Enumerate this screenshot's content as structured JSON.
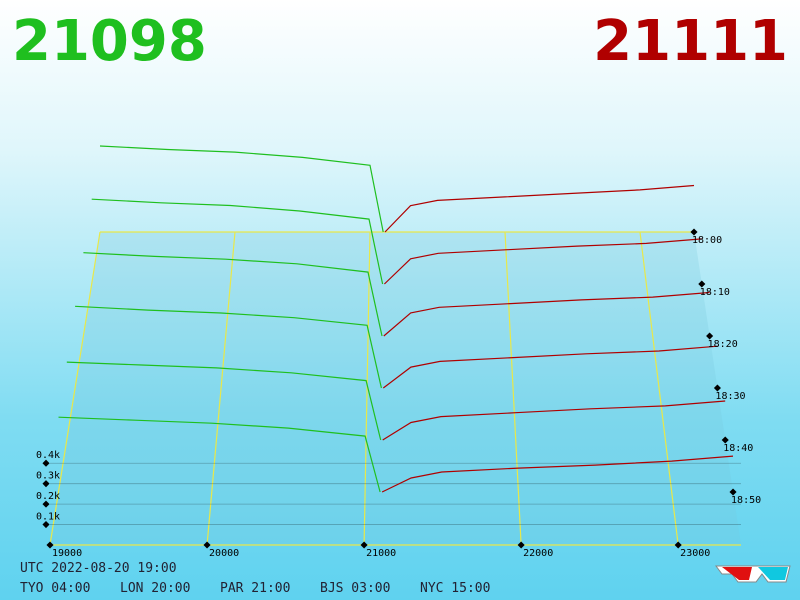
{
  "chart_data": {
    "type": "depth3d",
    "best_bid": 21098,
    "best_ask": 21111,
    "bid_color": "#1fbf1f",
    "ask_color": "#b00000",
    "grid_color": "#e8e84a",
    "xlim": [
      19000,
      23400
    ],
    "xticks": [
      19000,
      20000,
      21000,
      22000,
      23000
    ],
    "ylim": [
      0,
      450
    ],
    "yticks": [
      {
        "value": 100,
        "label": "0.1k"
      },
      {
        "value": 200,
        "label": "0.2k"
      },
      {
        "value": 300,
        "label": "0.3k"
      },
      {
        "value": 400,
        "label": "0.4k"
      }
    ],
    "snapshots": [
      {
        "time": "18:00",
        "bids": {
          "x": [
            19000,
            19500,
            20000,
            20500,
            21000,
            21098
          ],
          "values": [
            490,
            470,
            455,
            425,
            380,
            0
          ]
        },
        "asks": {
          "x": [
            21111,
            21300,
            21500,
            22000,
            22500,
            23000,
            23400
          ],
          "values": [
            0,
            150,
            180,
            200,
            220,
            240,
            265
          ]
        }
      },
      {
        "time": "18:10",
        "bids": {
          "x": [
            19000,
            19500,
            20000,
            20500,
            21000,
            21098
          ],
          "values": [
            470,
            450,
            435,
            405,
            360,
            0
          ]
        },
        "asks": {
          "x": [
            21111,
            21300,
            21500,
            22000,
            22500,
            23000,
            23400
          ],
          "values": [
            0,
            140,
            170,
            190,
            210,
            225,
            250
          ]
        }
      },
      {
        "time": "18:20",
        "bids": {
          "x": [
            19000,
            19500,
            20000,
            20500,
            21000,
            21098
          ],
          "values": [
            450,
            430,
            415,
            390,
            345,
            0
          ]
        },
        "asks": {
          "x": [
            21111,
            21300,
            21500,
            22000,
            22500,
            23000,
            23400
          ],
          "values": [
            0,
            125,
            155,
            175,
            195,
            210,
            235
          ]
        }
      },
      {
        "time": "18:30",
        "bids": {
          "x": [
            19000,
            19500,
            20000,
            20500,
            21000,
            21098
          ],
          "values": [
            430,
            410,
            395,
            370,
            330,
            0
          ]
        },
        "asks": {
          "x": [
            21111,
            21300,
            21500,
            22000,
            22500,
            23000,
            23400
          ],
          "values": [
            0,
            110,
            140,
            160,
            180,
            195,
            220
          ]
        }
      },
      {
        "time": "18:40",
        "bids": {
          "x": [
            19000,
            19500,
            20000,
            20500,
            21000,
            21098
          ],
          "values": [
            400,
            385,
            370,
            345,
            305,
            0
          ]
        },
        "asks": {
          "x": [
            21111,
            21300,
            21500,
            22000,
            22500,
            23000,
            23400
          ],
          "values": [
            0,
            90,
            120,
            140,
            160,
            175,
            200
          ]
        }
      },
      {
        "time": "18:50",
        "bids": {
          "x": [
            19000,
            19500,
            20000,
            20500,
            21000,
            21098
          ],
          "values": [
            375,
            360,
            345,
            320,
            280,
            0
          ]
        },
        "asks": {
          "x": [
            21111,
            21300,
            21500,
            22000,
            22500,
            23000,
            23400
          ],
          "values": [
            0,
            70,
            100,
            120,
            135,
            155,
            180
          ]
        }
      }
    ],
    "utc": "UTC 2022-08-20 19:00",
    "clocks": [
      "TYO 04:00",
      "LON 20:00",
      "PAR 21:00",
      "BJS 03:00",
      "NYC 15:00"
    ]
  }
}
